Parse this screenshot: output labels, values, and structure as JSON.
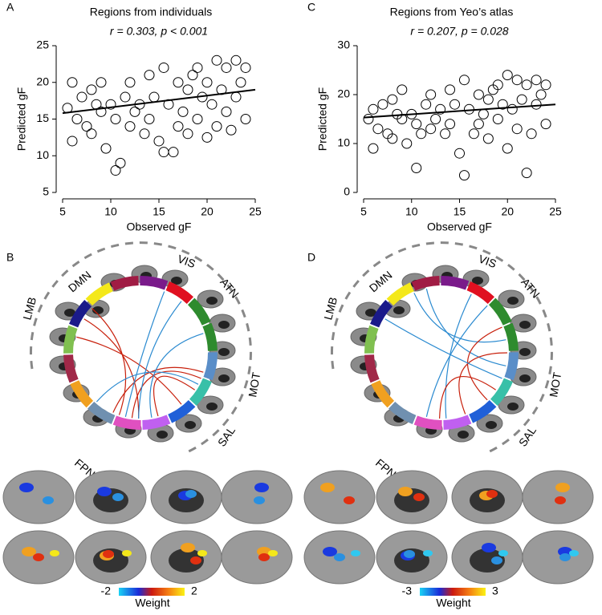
{
  "chart_data": [
    {
      "type": "scatter",
      "label": "A",
      "title": "Regions from individuals",
      "subtitle": "r = 0.303, p < 0.001",
      "x_label": "Observed gF",
      "y_label": "Predicted gF",
      "color": "#000000",
      "xlim": [
        5,
        25
      ],
      "ylim": [
        5,
        25
      ],
      "xticks": [
        5,
        10,
        15,
        20,
        25
      ],
      "yticks": [
        5,
        10,
        15,
        20,
        25
      ],
      "x": [
        5.5,
        6,
        6,
        6.5,
        7,
        7.5,
        8,
        8,
        8.5,
        9,
        9,
        9.5,
        10,
        10.5,
        10.5,
        11,
        11.5,
        12,
        12,
        12.5,
        13,
        13.5,
        14,
        14,
        14.5,
        15,
        15.5,
        15.5,
        16,
        16.5,
        17,
        17,
        17.5,
        18,
        18,
        18.5,
        19,
        19,
        19.5,
        20,
        20,
        20.5,
        21,
        21,
        21.5,
        22,
        22,
        22.5,
        23,
        23,
        23.5,
        24,
        24
      ],
      "values": [
        16.5,
        12,
        20,
        15,
        18,
        14,
        19,
        13,
        17,
        16,
        20,
        11,
        17,
        8,
        15,
        9,
        18,
        14,
        20,
        16,
        17,
        13,
        21,
        15,
        18,
        12,
        22,
        10.5,
        17,
        10.5,
        14,
        20,
        16,
        19,
        13,
        21,
        15,
        22,
        18,
        12.5,
        20,
        17,
        23,
        14,
        19,
        16,
        22,
        13.5,
        23,
        18,
        20,
        15,
        22
      ],
      "fit_line": {
        "x": [
          5,
          25
        ],
        "values": [
          15.8,
          19
        ]
      }
    },
    {
      "type": "scatter",
      "label": "C",
      "title": "Regions from Yeo’s atlas",
      "subtitle": "r = 0.207, p = 0.028",
      "x_label": "Observed gF",
      "y_label": "Predicted gF",
      "color": "#000000",
      "xlim": [
        5,
        25
      ],
      "ylim": [
        0,
        30
      ],
      "xticks": [
        5,
        10,
        15,
        20,
        25
      ],
      "yticks": [
        0,
        10,
        20,
        30
      ],
      "x": [
        5.5,
        6,
        6,
        6.5,
        7,
        7.5,
        8,
        8,
        8.5,
        9,
        9,
        9.5,
        10,
        10.5,
        10.5,
        11,
        11.5,
        12,
        12,
        12.5,
        13,
        13.5,
        14,
        14,
        14.5,
        15,
        15.5,
        15.5,
        16,
        16.5,
        17,
        17,
        17.5,
        18,
        18,
        18.5,
        19,
        19,
        19.5,
        20,
        20,
        20.5,
        21,
        21,
        21.5,
        22,
        22,
        22.5,
        23,
        23,
        23.5,
        24,
        24
      ],
      "values": [
        15,
        9,
        17,
        13,
        18,
        12,
        19,
        11,
        16,
        15,
        21,
        10,
        16,
        5,
        14,
        12,
        18,
        13,
        20,
        15,
        17,
        12,
        21,
        14,
        18,
        8,
        23,
        3.5,
        17,
        12,
        14,
        20,
        16,
        19,
        11,
        21,
        15,
        22,
        18,
        9,
        24,
        17,
        23,
        13,
        19,
        4,
        22,
        12,
        23,
        18,
        20,
        14,
        22
      ],
      "fit_line": {
        "x": [
          5,
          25
        ],
        "values": [
          15.3,
          18
        ]
      }
    }
  ],
  "panels": [
    {
      "label": "B",
      "networks": [
        "DMN",
        "VIS",
        "ATN",
        "MOT",
        "SAL",
        "FPN",
        "LMB"
      ],
      "colorbar": {
        "min": "-2",
        "max": "2",
        "label": "Weight"
      }
    },
    {
      "label": "D",
      "networks": [
        "DMN",
        "VIS",
        "ATN",
        "MOT",
        "SAL",
        "FPN",
        "LMB"
      ],
      "colorbar": {
        "min": "-3",
        "max": "3",
        "label": "Weight"
      }
    }
  ]
}
